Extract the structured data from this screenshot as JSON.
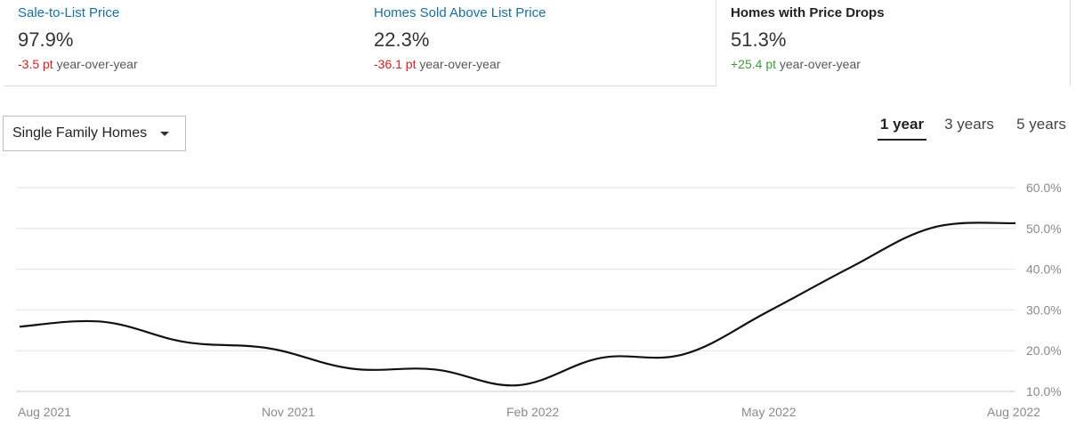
{
  "metric_tabs": [
    {
      "label": "Sale-to-List Price",
      "value": "97.9%",
      "delta": "-3.5 pt",
      "suffix": "year-over-year",
      "trend": "negative",
      "active": false
    },
    {
      "label": "Homes Sold Above List Price",
      "value": "22.3%",
      "delta": "-36.1 pt",
      "suffix": "year-over-year",
      "trend": "negative",
      "active": false
    },
    {
      "label": "Homes with Price Drops",
      "value": "51.3%",
      "delta": "+25.4 pt",
      "suffix": "year-over-year",
      "trend": "positive",
      "active": true
    }
  ],
  "property_type": {
    "selected": "Single Family Homes"
  },
  "time_range": {
    "options": [
      "1 year",
      "3 years",
      "5 years"
    ],
    "selected": "1 year"
  },
  "colors": {
    "link": "#1a6fa0",
    "negative": "#d21f1f",
    "positive": "#3f9a3f",
    "line": "#111111",
    "grid": "#e2e2e2"
  },
  "chart_data": {
    "type": "line",
    "title": "",
    "xlabel": "",
    "ylabel": "",
    "x_ticks": [
      "Aug 2021",
      "Nov 2021",
      "Feb 2022",
      "May 2022",
      "Aug 2022"
    ],
    "y_ticks": [
      "60.0%",
      "50.0%",
      "40.0%",
      "30.0%",
      "20.0%",
      "10.0%"
    ],
    "ylim": [
      10,
      60
    ],
    "grid": true,
    "series": [
      {
        "x": [
          "Aug 2021",
          "Sep 2021",
          "Oct 2021",
          "Nov 2021",
          "Dec 2021",
          "Jan 2022",
          "Feb 2022",
          "Mar 2022",
          "Apr 2022",
          "May 2022",
          "Jun 2022",
          "Jul 2022",
          "Aug 2022"
        ],
        "values": [
          25.9,
          27.1,
          22.1,
          20.6,
          15.6,
          15.4,
          11.5,
          18.2,
          19.1,
          29.4,
          40.3,
          50.2,
          51.3
        ]
      }
    ]
  }
}
